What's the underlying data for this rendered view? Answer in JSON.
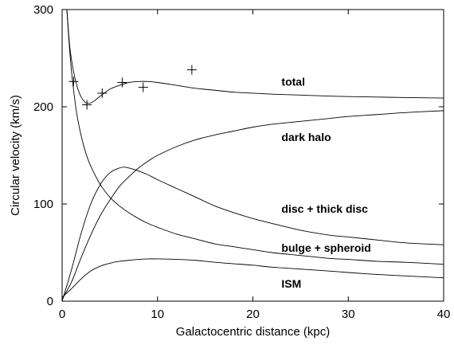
{
  "chart_data": {
    "type": "line",
    "title": "",
    "xlabel": "Galactocentric distance (kpc)",
    "ylabel": "Circular velocity (km/s)",
    "xlim": [
      0,
      40
    ],
    "ylim": [
      0,
      300
    ],
    "xticks": [
      0,
      10,
      20,
      30,
      40
    ],
    "yticks": [
      0,
      100,
      200,
      300
    ],
    "grid": false,
    "series": [
      {
        "name": "total",
        "x": [
          0.5,
          0.8,
          1.2,
          1.6,
          2.0,
          2.5,
          3.0,
          3.5,
          4.0,
          5.0,
          6.0,
          7.0,
          8.0,
          9.0,
          10.0,
          12.0,
          14.0,
          16.0,
          18.0,
          20.0,
          22.0,
          25.0,
          28.0,
          30.0,
          33.0,
          36.0,
          40.0
        ],
        "values": [
          300,
          262,
          236,
          220,
          210,
          204,
          204,
          207,
          211,
          218,
          222,
          225,
          226,
          226,
          225,
          222,
          219,
          217,
          215,
          214,
          213,
          212,
          211,
          210.5,
          210,
          209.5,
          209
        ]
      },
      {
        "name": "dark halo",
        "x": [
          0,
          1,
          2,
          3,
          4,
          5,
          6,
          7,
          8,
          9,
          10,
          12,
          14,
          16,
          18,
          20,
          22,
          25,
          28,
          30,
          33,
          36,
          40
        ],
        "values": [
          2,
          20,
          45,
          68,
          88,
          104,
          118,
          128,
          137,
          144,
          150,
          159,
          166,
          171,
          175,
          179,
          182,
          185,
          188,
          190,
          192,
          194,
          196
        ]
      },
      {
        "name": "disc + thick disc",
        "x": [
          0,
          1,
          2,
          3,
          4,
          5,
          6,
          6.5,
          7,
          8,
          9,
          10,
          12,
          14,
          16,
          18,
          20,
          22,
          25,
          28,
          30,
          33,
          36,
          40
        ],
        "values": [
          0,
          33,
          70,
          100,
          120,
          132,
          137,
          138,
          137,
          134,
          130,
          125,
          116,
          107,
          98,
          91,
          85,
          80,
          73,
          68,
          66,
          63,
          60,
          58
        ]
      },
      {
        "name": "bulge + spheroid",
        "x": [
          0.5,
          0.7,
          1.0,
          1.5,
          2.0,
          2.5,
          3.0,
          4.0,
          5.0,
          6.0,
          7.0,
          8.0,
          9.0,
          10.0,
          12.0,
          14.0,
          16.0,
          18.0,
          20.0,
          22.0,
          25.0,
          28.0,
          30.0,
          33.0,
          36.0,
          40.0
        ],
        "values": [
          300,
          270,
          235,
          195,
          170,
          152,
          139,
          120,
          107,
          98,
          91,
          85,
          80,
          76,
          69,
          64,
          59,
          56,
          53,
          50,
          47,
          44,
          43,
          41,
          40,
          38
        ]
      },
      {
        "name": "ISM",
        "x": [
          0,
          1,
          2,
          3,
          4,
          5,
          6,
          7,
          8,
          9,
          10,
          12,
          14,
          16,
          18,
          20,
          22,
          25,
          28,
          30,
          33,
          36,
          40
        ],
        "values": [
          4,
          13,
          23,
          31,
          36,
          39,
          41,
          42,
          43,
          43.5,
          43.5,
          43,
          42,
          40,
          38.5,
          37,
          35,
          33,
          31,
          29.5,
          27.5,
          26,
          24
        ]
      }
    ],
    "observations": {
      "x": [
        1.2,
        2.6,
        4.2,
        6.3,
        8.5,
        13.6
      ],
      "values": [
        226,
        202,
        214,
        225,
        220,
        238
      ]
    },
    "curve_labels": [
      {
        "text": "total",
        "x": 23,
        "y": 226
      },
      {
        "text": "dark halo",
        "x": 23,
        "y": 169
      },
      {
        "text": "disc + thick disc",
        "x": 23,
        "y": 95
      },
      {
        "text": "bulge + spheroid",
        "x": 23,
        "y": 55
      },
      {
        "text": "ISM",
        "x": 23,
        "y": 18
      }
    ]
  }
}
